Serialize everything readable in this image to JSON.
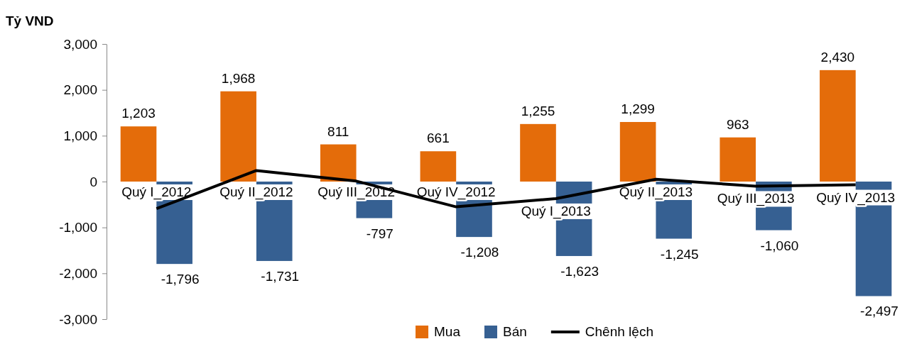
{
  "chart_data": {
    "type": "bar",
    "ylabel": "Tỷ VND",
    "categories": [
      "Quý I_2012",
      "Quý II_2012",
      "Quý III_2012",
      "Quý IV_2012",
      "Quý I_2013",
      "Quý II_2013",
      "Quý III_2013",
      "Quý IV_2013"
    ],
    "series": [
      {
        "name": "Mua",
        "color": "#e46c0a",
        "values": [
          1203,
          1968,
          811,
          661,
          1255,
          1299,
          963,
          2430
        ],
        "value_labels": [
          "1,203",
          "1,968",
          "811",
          "661",
          "1,255",
          "1,299",
          "963",
          "2,430"
        ]
      },
      {
        "name": "Bán",
        "color": "#366092",
        "values": [
          -1796,
          -1731,
          -797,
          -1208,
          -1623,
          -1245,
          -1060,
          -2497
        ],
        "value_labels": [
          "-1,796",
          "-1,731",
          "-797",
          "-1,208",
          "-1,623",
          "-1,245",
          "-1,060",
          "-2,497"
        ]
      },
      {
        "name": "Chênh lệch",
        "type": "line",
        "color": "#000000",
        "values": [
          -590,
          240,
          10,
          -550,
          -370,
          50,
          -100,
          -70
        ]
      }
    ],
    "ylim": [
      -3000,
      3000
    ],
    "yticks": [
      {
        "value": -3000,
        "label": "-3,000"
      },
      {
        "value": -2000,
        "label": "-2,000"
      },
      {
        "value": -1000,
        "label": "-1,000"
      },
      0,
      {
        "value": 1000,
        "label": "1,000"
      },
      {
        "value": 2000,
        "label": "2,000"
      },
      {
        "value": 3000,
        "label": "3,000"
      }
    ],
    "grid": false,
    "legend": "bottom",
    "marker": "none"
  }
}
